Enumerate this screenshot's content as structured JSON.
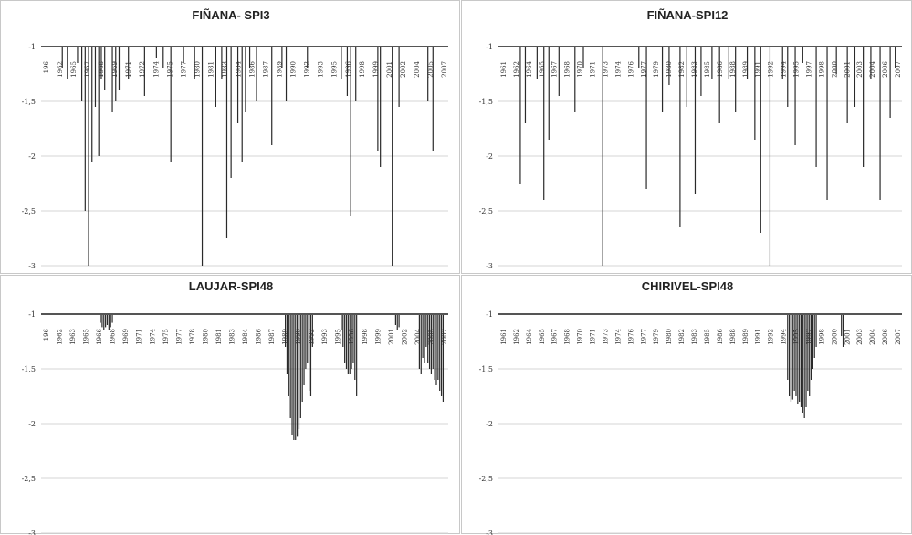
{
  "chart_data": [
    {
      "type": "bar",
      "title": "FIÑANA- SPI3",
      "ylim": [
        -3,
        -1
      ],
      "yticks": [
        -1,
        -1.5,
        -2,
        -2.5,
        -3
      ],
      "ytick_labels": [
        "-1",
        "-1,5",
        "-2",
        "-2,5",
        "-3"
      ],
      "xticks": [
        "196",
        "1962",
        "1965",
        "1967",
        "1968",
        "1969",
        "1971",
        "1972",
        "1974",
        "1975",
        "1977",
        "1980",
        "1981",
        "1983",
        "1984",
        "1986",
        "1987",
        "1989",
        "1990",
        "1992",
        "1993",
        "1995",
        "1996",
        "1998",
        "1999",
        "2001",
        "2002",
        "2004",
        "2005",
        "2007"
      ],
      "grid": true,
      "x_range": [
        1960,
        2008
      ],
      "series": [
        {
          "x": [
            1962.5,
            1963.1,
            1964.3,
            1964.8,
            1965.2,
            1965.6,
            1966.0,
            1966.4,
            1966.8,
            1967.1,
            1967.5,
            1968.4,
            1968.8,
            1969.2,
            1970.3,
            1972.2,
            1973.6,
            1974.4,
            1975.3,
            1976.8,
            1978.1,
            1979.0,
            1980.6,
            1981.3,
            1981.9,
            1982.4,
            1983.2,
            1983.7,
            1984.1,
            1984.6,
            1985.4,
            1987.2,
            1988.4,
            1988.9,
            1991.4,
            1995.4,
            1996.1,
            1996.5,
            1997.1,
            1999.7,
            2000.0,
            2001.4,
            2002.2,
            2005.6,
            2006.2
          ],
          "values": [
            -1.2,
            -1.3,
            -1.15,
            -1.5,
            -2.5,
            -3.0,
            -2.05,
            -1.55,
            -2.0,
            -1.3,
            -1.4,
            -1.6,
            -1.5,
            -1.4,
            -1.3,
            -1.45,
            -1.1,
            -1.2,
            -2.05,
            -1.15,
            -1.3,
            -3.0,
            -1.55,
            -1.3,
            -2.75,
            -2.2,
            -1.7,
            -2.05,
            -1.6,
            -1.2,
            -1.5,
            -1.9,
            -1.2,
            -1.5,
            -1.2,
            -1.3,
            -1.45,
            -2.55,
            -1.5,
            -1.95,
            -2.1,
            -3.0,
            -1.55,
            -1.5,
            -1.95
          ]
        }
      ]
    },
    {
      "type": "bar",
      "title": "FIÑANA-SPI12",
      "ylim": [
        -3,
        -1
      ],
      "yticks": [
        -1,
        -1.5,
        -2,
        -2.5,
        -3
      ],
      "ytick_labels": [
        "-1",
        "-1,5",
        "-2",
        "-2,5",
        "-3"
      ],
      "xticks": [
        "1961",
        "1962",
        "1964",
        "1965",
        "1967",
        "1968",
        "1970",
        "1971",
        "1973",
        "1974",
        "1976",
        "1977",
        "1979",
        "1980",
        "1982",
        "1983",
        "1985",
        "1986",
        "1988",
        "1989",
        "1991",
        "1992",
        "1994",
        "1995",
        "1997",
        "1998",
        "2000",
        "2001",
        "2003",
        "2004",
        "2006",
        "2007"
      ],
      "grid": true,
      "x_range": [
        1960,
        2008
      ],
      "series": [
        {
          "x": [
            1962.6,
            1963.2,
            1964.6,
            1965.4,
            1966.0,
            1967.2,
            1969.1,
            1970.1,
            1972.4,
            1976.7,
            1977.6,
            1979.5,
            1980.3,
            1981.6,
            1982.4,
            1983.4,
            1984.1,
            1985.4,
            1986.3,
            1987.4,
            1988.2,
            1989.6,
            1990.5,
            1991.2,
            1992.3,
            1993.8,
            1994.4,
            1995.3,
            1996.2,
            1997.8,
            1999.1,
            2000.2,
            2001.5,
            2002.4,
            2003.4,
            2004.3,
            2005.4,
            2006.6,
            2007.2
          ],
          "values": [
            -2.25,
            -1.7,
            -1.3,
            -2.4,
            -1.85,
            -1.45,
            -1.6,
            -1.2,
            -3.0,
            -1.2,
            -2.3,
            -1.6,
            -1.35,
            -2.65,
            -1.55,
            -2.35,
            -1.45,
            -1.3,
            -1.7,
            -1.3,
            -1.6,
            -1.3,
            -1.85,
            -2.7,
            -3.0,
            -1.3,
            -1.55,
            -1.9,
            -1.15,
            -2.1,
            -2.4,
            -1.25,
            -1.7,
            -1.55,
            -2.1,
            -1.3,
            -2.4,
            -1.65,
            -1.2
          ]
        }
      ]
    },
    {
      "type": "bar",
      "title": "LAUJAR-SPI48",
      "ylim": [
        -3,
        -1
      ],
      "yticks": [
        -1,
        -1.5,
        -2,
        -2.5,
        -3
      ],
      "ytick_labels": [
        "-1",
        "-1,5",
        "-2",
        "-2,5",
        "-3"
      ],
      "xticks": [
        "196",
        "1962",
        "1963",
        "1965",
        "1966",
        "1968",
        "1969",
        "1971",
        "1974",
        "1975",
        "1977",
        "1978",
        "1980",
        "1981",
        "1983",
        "1984",
        "1986",
        "1987",
        "1989",
        "1990",
        "1992",
        "1993",
        "1995",
        "1996",
        "1998",
        "1999",
        "2001",
        "2002",
        "2004",
        "2005",
        "2007"
      ],
      "grid": true,
      "x_range": [
        1960,
        2008
      ],
      "series": [
        {
          "x": [
            1967.0,
            1967.2,
            1967.4,
            1967.6,
            1967.8,
            1968.0,
            1968.2,
            1968.4,
            1988.8,
            1989.0,
            1989.2,
            1989.4,
            1989.6,
            1989.8,
            1990.0,
            1990.2,
            1990.4,
            1990.6,
            1990.8,
            1991.0,
            1991.2,
            1991.4,
            1991.6,
            1991.8,
            1992.0,
            1995.4,
            1995.6,
            1995.8,
            1996.0,
            1996.2,
            1996.4,
            1996.6,
            1996.8,
            1997.0,
            1997.2,
            2001.8,
            2002.0,
            2002.2,
            2004.6,
            2004.8,
            2005.0,
            2005.2,
            2005.4,
            2005.6,
            2005.8,
            2006.0,
            2006.2,
            2006.4,
            2006.6,
            2006.8,
            2007.0,
            2007.2,
            2007.4
          ],
          "values": [
            -1.08,
            -1.12,
            -1.15,
            -1.12,
            -1.1,
            -1.15,
            -1.12,
            -1.08,
            -1.3,
            -1.55,
            -1.75,
            -1.95,
            -2.1,
            -2.15,
            -2.15,
            -2.12,
            -2.05,
            -1.95,
            -1.8,
            -1.65,
            -1.5,
            -1.45,
            -1.7,
            -1.75,
            -1.3,
            -1.15,
            -1.3,
            -1.45,
            -1.5,
            -1.55,
            -1.55,
            -1.5,
            -1.45,
            -1.6,
            -1.75,
            -1.1,
            -1.15,
            -1.12,
            -1.5,
            -1.55,
            -1.4,
            -1.45,
            -1.3,
            -1.45,
            -1.5,
            -1.55,
            -1.5,
            -1.6,
            -1.65,
            -1.6,
            -1.7,
            -1.75,
            -1.8
          ]
        }
      ]
    },
    {
      "type": "bar",
      "title": "CHIRIVEL-SPI48",
      "ylim": [
        -3,
        -1
      ],
      "yticks": [
        -1,
        -1.5,
        -2,
        -2.5,
        -3
      ],
      "ytick_labels": [
        "-1",
        "-1,5",
        "-2",
        "-2,5",
        "-3"
      ],
      "xticks": [
        "1961",
        "1962",
        "1964",
        "1965",
        "1967",
        "1968",
        "1970",
        "1971",
        "1973",
        "1974",
        "1976",
        "1977",
        "1979",
        "1980",
        "1982",
        "1983",
        "1985",
        "1986",
        "1988",
        "1989",
        "1991",
        "1992",
        "1994",
        "1995",
        "1997",
        "1998",
        "2000",
        "2001",
        "2003",
        "2004",
        "2006",
        "2007"
      ],
      "grid": true,
      "x_range": [
        1960,
        2008
      ],
      "series": [
        {
          "x": [
            1994.4,
            1994.6,
            1994.8,
            1995.0,
            1995.2,
            1995.4,
            1995.6,
            1995.8,
            1996.0,
            1996.2,
            1996.4,
            1996.6,
            1996.8,
            1997.0,
            1997.2,
            1997.4,
            1997.6,
            1997.8,
            2000.8,
            2001.0
          ],
          "values": [
            -1.6,
            -1.75,
            -1.8,
            -1.78,
            -1.7,
            -1.75,
            -1.82,
            -1.8,
            -1.85,
            -1.9,
            -1.95,
            -1.85,
            -1.7,
            -1.75,
            -1.6,
            -1.5,
            -1.4,
            -1.3,
            -1.2,
            -1.3
          ]
        }
      ]
    }
  ]
}
